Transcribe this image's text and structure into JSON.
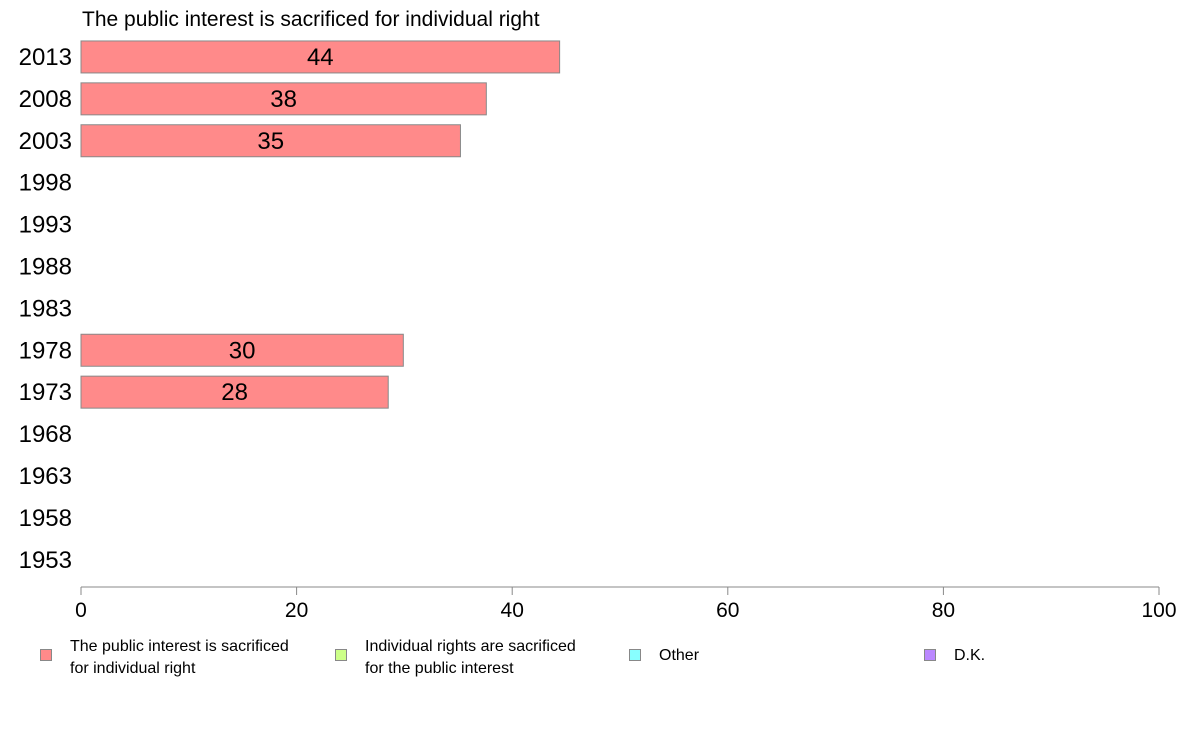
{
  "chart_data": {
    "type": "bar",
    "orientation": "horizontal",
    "title": "The public interest is sacrificed for individual right",
    "categories": [
      "2013",
      "2008",
      "2003",
      "1998",
      "1993",
      "1988",
      "1983",
      "1978",
      "1973",
      "1968",
      "1963",
      "1958",
      "1953"
    ],
    "series": [
      {
        "name": "The public interest is sacrificed for individual right",
        "values": [
          44.4,
          37.6,
          35.2,
          null,
          null,
          null,
          null,
          29.9,
          28.5,
          null,
          null,
          null,
          null
        ],
        "labels": [
          "44",
          "38",
          "35",
          "",
          "",
          "",
          "",
          "30",
          "28",
          "",
          "",
          "",
          ""
        ]
      }
    ],
    "xlim": [
      0,
      100
    ],
    "xticks": [
      "0",
      "20",
      "40",
      "60",
      "80",
      "100"
    ],
    "grid": false,
    "legend_position": "bottom",
    "legend": [
      {
        "label": "The public interest is sacrificed\nfor individual right",
        "color": "#ff8a8a"
      },
      {
        "label": "Individual rights are sacrificed\nfor the public interest",
        "color": "#ccff88"
      },
      {
        "label": "Other",
        "color": "#88ffff"
      },
      {
        "label": "D.K.",
        "color": "#bb88ff"
      }
    ],
    "bar_color": "#ff8a8a"
  }
}
